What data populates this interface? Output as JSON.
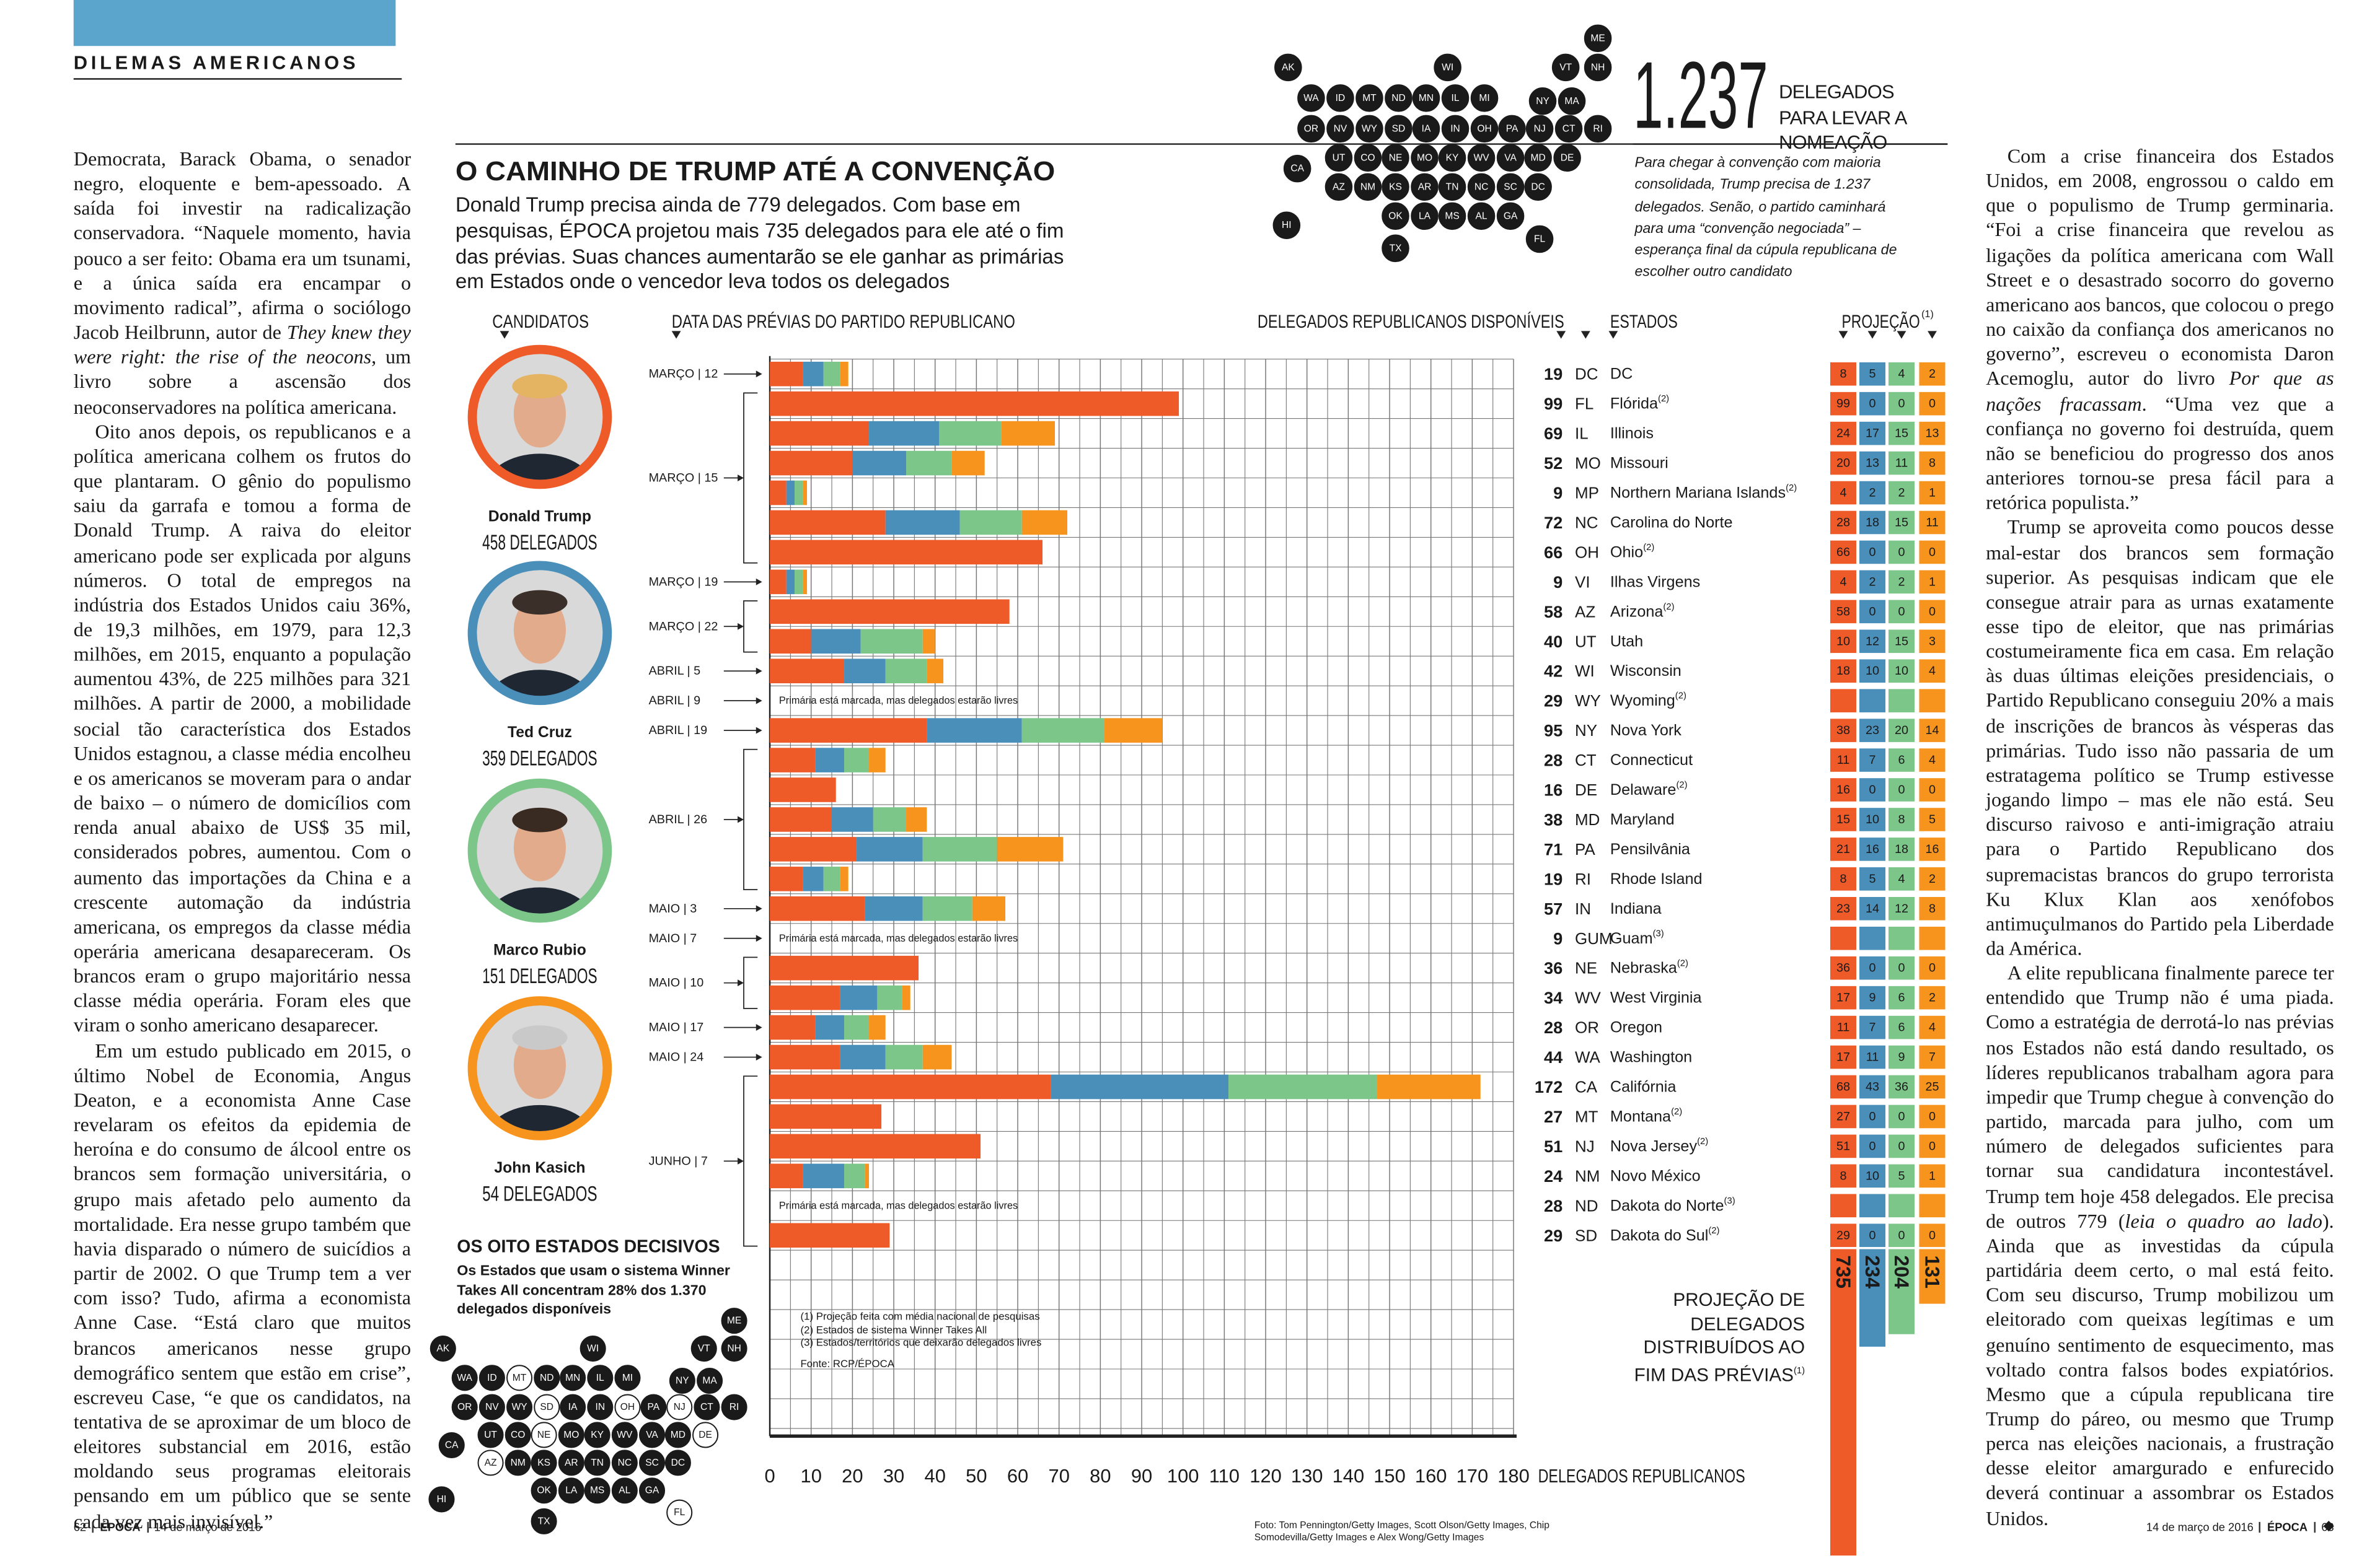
{
  "header": {
    "section": "DILEMAS AMERICANOS"
  },
  "article_left": {
    "paragraphs": [
      [
        "Democrata, Barack Obama, o senador negro, eloquente e bem-apessoado. A saída foi investir na radicalização conservadora. “Naquele momento, havia pouco a ser feito: Obama era um tsunami, e a única saída era encampar o movimento radical”, afirma o sociólogo Jacob Heilbrunn, autor de ",
        {
          "text": "They knew they were right: the rise of the neocons",
          "italic": true
        },
        ", um livro sobre a ascensão dos neoconservadores na política americana."
      ],
      [
        "Oito anos depois, os republicanos e a política americana colhem os frutos do que plantaram. O gênio do populismo saiu da garrafa e tomou a forma de Donald Trump. A raiva do eleitor americano pode ser explicada por alguns números. O total de empregos na indústria dos Estados Unidos caiu 36%, de 19,3 milhões, em 1979, para 12,3 milhões, em 2015, enquanto a população aumentou 43%, de 225 milhões para 321 milhões. A partir de 2000, a mobilidade social tão característica dos Estados Unidos estagnou, a classe média encolheu e os americanos se moveram para o andar de baixo – o número de domicílios com renda anual abaixo de US$ 35 mil, considerados pobres, aumentou. Com o aumento das importações da China e a crescente automação da indústria americana, os empregos da classe média operária americana desapareceram. Os brancos eram o grupo majoritário nessa classe média operária. Foram eles que viram o sonho americano desaparecer."
      ],
      [
        "Em um estudo publicado em 2015, o último Nobel de Economia, Angus Deaton, e a economista Anne Case revelaram os efeitos da epidemia de heroína e do consumo de álcool entre os brancos sem formação universitária, o grupo mais afetado pelo aumento da mortalidade. Era nesse grupo também que havia disparado o número de suicídios a partir de 2002. O que Trump tem a ver com isso? Tudo, afirma a economista Anne Case. “Está claro que muitos brancos americanos nesse grupo demográfico sentem que estão em crise”, escreveu Case, “e que os candidatos, na tentativa de se aproximar de um bloco de eleitores substancial em 2016, estão moldando seus programas eleitorais pensando em um público que se sente cada vez mais invisível.”"
      ]
    ]
  },
  "article_right": {
    "paragraphs": [
      [
        "Com a crise financeira dos Estados Unidos, em 2008, engrossou o caldo em que o populismo de Trump germinaria. “Foi a crise financeira que revelou as ligações da política americana com Wall Street e o desastrado socorro do governo americano aos bancos, que colocou o prego no caixão da confiança dos americanos no governo”, escreveu o economista Daron Acemoglu, autor do livro ",
        {
          "text": "Por que as nações fracassam",
          "italic": true
        },
        ". “Uma vez que a confiança no governo foi destruída, quem não se beneficiou do progresso dos anos anteriores tornou-se presa fácil para a retórica populista.”"
      ],
      [
        "Trump se aproveita como poucos desse mal-estar dos brancos sem formação superior. As pesquisas indicam que ele consegue atrair para as urnas exatamente esse tipo de eleitor, que nas primárias costumeiramente fica em casa. Em relação às duas últimas eleições presidenciais, o Partido Republicano conseguiu 20% a mais de inscrições de brancos às vésperas das primárias. Tudo isso não passaria de um estratagema político se Trump estivesse jogando limpo – mas ele não está. Seu discurso raivoso e anti-imigração atraiu para o Partido Republicano dos supremacistas brancos do grupo terrorista Ku Klux Klan aos xenófobos antimuçulmanos do Partido pela Liberdade da América."
      ],
      [
        "A elite republicana finalmente parece ter entendido que Trump não é uma piada. Como a estratégia de derrotá-lo nas prévias nos Estados não está dando resultado, os líderes republicanos trabalham agora para impedir que Trump chegue à convenção do partido, marcada para julho, com um número de delegados suficientes para tornar sua candidatura incontestável. Trump tem hoje 458 delegados. Ele precisa de outros 779 (",
        {
          "text": "leia o quadro ao lado",
          "italic": true
        },
        "). Ainda que as investidas da cúpula partidária deem certo, o mal está feito. Com seu discurso, Trump mobilizou um eleitorado com queixas legítimas e um genuíno sentimento de esquecimento, mas voltado contra falsos bodes expiatórios. Mesmo que a cúpula republicana tire Trump do páreo, ou mesmo que Trump perca nas eleições nacionais, a frustração desse eleitor amargurado e enfurecido deverá continuar a assombrar os Estados Unidos."
      ]
    ],
    "end_mark": "◆"
  },
  "chart_data": {
    "type": "bar",
    "stacked": true,
    "grid": true,
    "title": "O CAMINHO DE TRUMP ATÉ A CONVENÇÃO",
    "subtitle": "Donald Trump precisa ainda de 779 delegados. Com base em pesquisas, ÉPOCA projetou mais 735 delegados para ele até o fim das prévias. Suas chances aumentarão se ele ganhar as primárias em Estados onde o vencedor leva todos os delegados",
    "headers": {
      "candidates": "CANDIDATOS",
      "dates": "DATA DAS PRÉVIAS DO PARTIDO REPUBLICANO",
      "delegates": "DELEGADOS REPUBLICANOS DISPONÍVEIS",
      "states": "ESTADOS",
      "projection": "PROJEÇÃO",
      "projection_note": "(1)"
    },
    "categories": [
      "DC",
      "FL",
      "IL",
      "MO",
      "MP",
      "NC",
      "OH",
      "VI",
      "AZ",
      "UT",
      "WI",
      "WY",
      "NY",
      "CT",
      "DE",
      "MD",
      "PA",
      "RI",
      "IN",
      "GUM",
      "NE",
      "WV",
      "OR",
      "WA",
      "CA",
      "MT",
      "NJ",
      "NM",
      "ND",
      "SD"
    ],
    "names": [
      "DC",
      "Flórida",
      "Illinois",
      "Missouri",
      "Northern Mariana Islands",
      "Carolina do Norte",
      "Ohio",
      "Ilhas Virgens",
      "Arizona",
      "Utah",
      "Wisconsin",
      "Wyoming",
      "Nova York",
      "Connecticut",
      "Delaware",
      "Maryland",
      "Pensilvânia",
      "Rhode Island",
      "Indiana",
      "Guam",
      "Nebraska",
      "West Virginia",
      "Oregon",
      "Washington",
      "Califórnia",
      "Montana",
      "Nova Jersey",
      "Novo México",
      "Dakota do Norte",
      "Dakota do Sul"
    ],
    "name_notes": [
      null,
      "(2)",
      null,
      null,
      "(2)",
      null,
      "(2)",
      null,
      "(2)",
      null,
      null,
      "(2)",
      null,
      null,
      "(2)",
      null,
      null,
      null,
      null,
      "(3)",
      "(2)",
      null,
      null,
      null,
      null,
      "(2)",
      "(2)",
      null,
      "(3)",
      "(2)"
    ],
    "dates": [
      "MARÇO | 12",
      "MARÇO | 15",
      null,
      null,
      null,
      null,
      null,
      "MARÇO | 19",
      "MARÇO | 22",
      null,
      "ABRIL | 5",
      "ABRIL | 9",
      "ABRIL | 19",
      "ABRIL | 26",
      null,
      null,
      null,
      null,
      "MAIO | 3",
      "MAIO | 7",
      "MAIO | 10",
      null,
      "MAIO | 17",
      "MAIO | 24",
      "JUNHO | 7",
      null,
      null,
      null,
      null,
      null
    ],
    "delegates": [
      19,
      99,
      69,
      52,
      9,
      72,
      66,
      9,
      58,
      40,
      42,
      29,
      95,
      28,
      16,
      38,
      71,
      19,
      57,
      9,
      36,
      34,
      28,
      44,
      172,
      27,
      51,
      24,
      28,
      29
    ],
    "row_notes": [
      null,
      null,
      null,
      null,
      null,
      null,
      null,
      null,
      null,
      null,
      null,
      "Primária está marcada, mas delegados estarão livres",
      null,
      null,
      null,
      null,
      null,
      null,
      null,
      "Primária está marcada, mas delegados estarão livres",
      null,
      null,
      null,
      null,
      null,
      null,
      null,
      null,
      "Primária está marcada, mas delegados estarão livres",
      null
    ],
    "series": [
      {
        "name": "Donald Trump",
        "delegates_text": "458 DELEGADOS",
        "color": "#ef5a29",
        "total": 735,
        "values": [
          8,
          99,
          24,
          20,
          4,
          28,
          66,
          4,
          58,
          10,
          18,
          null,
          38,
          11,
          16,
          15,
          21,
          8,
          23,
          null,
          36,
          17,
          11,
          17,
          68,
          27,
          51,
          8,
          null,
          29
        ]
      },
      {
        "name": "Ted Cruz",
        "delegates_text": "359 DELEGADOS",
        "color": "#4a8fba",
        "total": 234,
        "values": [
          5,
          0,
          17,
          13,
          2,
          18,
          0,
          2,
          0,
          12,
          10,
          null,
          23,
          7,
          0,
          10,
          16,
          5,
          14,
          null,
          0,
          9,
          7,
          11,
          43,
          0,
          0,
          10,
          null,
          0
        ]
      },
      {
        "name": "Marco Rubio",
        "delegates_text": "151 DELEGADOS",
        "color": "#7dc68a",
        "total": 204,
        "values": [
          4,
          0,
          15,
          11,
          2,
          15,
          0,
          2,
          0,
          15,
          10,
          null,
          20,
          6,
          0,
          8,
          18,
          4,
          12,
          null,
          0,
          6,
          6,
          9,
          36,
          0,
          0,
          5,
          null,
          0
        ]
      },
      {
        "name": "John Kasich",
        "delegates_text": "54 DELEGADOS",
        "color": "#f7941e",
        "total": 131,
        "values": [
          2,
          0,
          13,
          8,
          1,
          11,
          0,
          1,
          0,
          3,
          4,
          null,
          14,
          4,
          0,
          5,
          16,
          2,
          8,
          null,
          0,
          2,
          4,
          7,
          25,
          0,
          0,
          1,
          null,
          0
        ]
      }
    ],
    "xlim": [
      0,
      180
    ],
    "xticks": [
      0,
      10,
      20,
      30,
      40,
      50,
      60,
      70,
      80,
      90,
      100,
      110,
      120,
      130,
      140,
      150,
      160,
      170,
      180
    ],
    "minor_xticks": [
      5,
      15,
      25,
      35,
      45,
      55,
      65,
      75,
      85,
      95,
      105,
      115,
      125,
      135,
      145,
      155,
      165,
      175
    ],
    "xlabel": "DELEGADOS REPUBLICANOS",
    "totals_label": "PROJEÇÃO DE DELEGADOS DISTRIBUÍDOS AO FIM DAS PRÉVIAS",
    "totals_label_note": "(1)",
    "footnotes": [
      "(1) Projeção feita com média nacional de pesquisas",
      "(2) Estados de sistema Winner Takes All",
      "(3) Estados/territórios que deixarão delegados livres"
    ],
    "source": "Fonte: RCP/ÉPOCA"
  },
  "goal": {
    "number": "1.237",
    "label": "DELEGADOS PARA LEVAR A NOMEAÇÃO",
    "text": "Para chegar à convenção com maioria consolidada, Trump precisa de 1.237 delegados. Senão, o partido caminhará para uma “convenção negociada” – esperança final da cúpula republicana de escolher outro candidato"
  },
  "map_top": {
    "states": [
      "ME",
      "AK",
      "WI",
      "VT",
      "NH",
      "WA",
      "ID",
      "MT",
      "ND",
      "MN",
      "IL",
      "MI",
      "NY",
      "MA",
      "OR",
      "NV",
      "WY",
      "SD",
      "IA",
      "IN",
      "OH",
      "PA",
      "NJ",
      "CT",
      "RI",
      "CA",
      "UT",
      "CO",
      "NE",
      "MO",
      "KY",
      "WV",
      "VA",
      "MD",
      "DE",
      "AZ",
      "NM",
      "KS",
      "AR",
      "TN",
      "NC",
      "SC",
      "DC",
      "OK",
      "LA",
      "MS",
      "AL",
      "GA",
      "HI",
      "TX",
      "FL"
    ]
  },
  "map_bottom": {
    "title": "OS OITO ESTADOS DECISIVOS",
    "description": "Os Estados que usam o sistema Winner Takes All concentram 28% dos 1.370 delegados disponíveis",
    "states": [
      "ME",
      "AK",
      "WI",
      "VT",
      "NH",
      "WA",
      "ID",
      "MT",
      "ND",
      "MN",
      "IL",
      "MI",
      "NY",
      "MA",
      "OR",
      "NV",
      "WY",
      "SD",
      "IA",
      "IN",
      "OH",
      "PA",
      "NJ",
      "CT",
      "RI",
      "CA",
      "UT",
      "CO",
      "NE",
      "MO",
      "KY",
      "WV",
      "VA",
      "MD",
      "DE",
      "AZ",
      "NM",
      "KS",
      "AR",
      "TN",
      "NC",
      "SC",
      "DC",
      "OK",
      "LA",
      "MS",
      "AL",
      "GA",
      "HI",
      "TX",
      "FL"
    ],
    "highlight": [
      false,
      false,
      false,
      false,
      false,
      false,
      false,
      true,
      false,
      false,
      false,
      false,
      false,
      false,
      false,
      false,
      false,
      true,
      false,
      false,
      true,
      false,
      true,
      false,
      false,
      false,
      false,
      false,
      true,
      false,
      false,
      false,
      false,
      false,
      true,
      true,
      false,
      false,
      false,
      false,
      false,
      false,
      false,
      false,
      false,
      false,
      false,
      false,
      false,
      false,
      true
    ]
  },
  "credit": "Foto: Tom Pennington/Getty Images, Scott Olson/Getty Images, Chip Somodevilla/Getty Images e Alex Wong/Getty Images",
  "footer": {
    "left_page": "62",
    "right_page": "63",
    "brand": "ÉPOCA",
    "date": "14 de março de 2016"
  }
}
